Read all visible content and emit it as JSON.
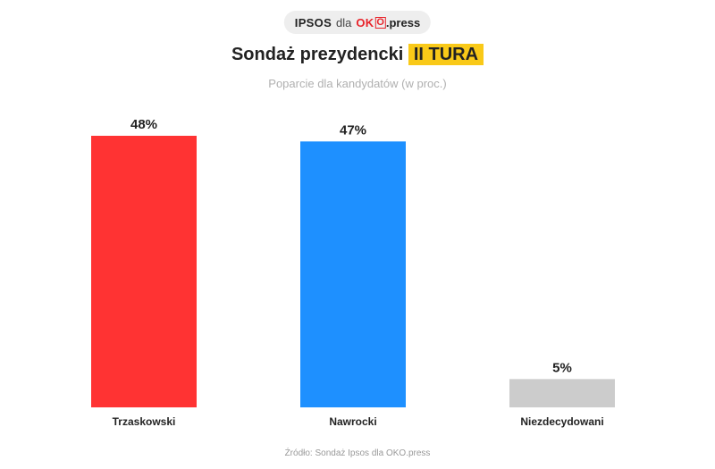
{
  "header": {
    "pollster": "IPSOS",
    "connector": "dla",
    "publisher_brand": "OK",
    "publisher_brand_box": "O",
    "publisher_suffix": ".press"
  },
  "chart_data": {
    "type": "bar",
    "title": "Sondaż prezydencki",
    "title_highlight": "II TURA",
    "subtitle": "Poparcie dla kandydatów (w proc.)",
    "categories": [
      "Trzaskowski",
      "Nawrocki",
      "Niezdecydowani"
    ],
    "values": [
      48,
      47,
      5
    ],
    "value_labels": [
      "48%",
      "47%",
      "5%"
    ],
    "colors": [
      "#ff3333",
      "#1e90ff",
      "#cccccc"
    ],
    "ylim": [
      0,
      48
    ],
    "grid": false,
    "legend": "none",
    "xlabel": "",
    "ylabel": ""
  },
  "source": "Źródło: Sondaż Ipsos dla OKO.press"
}
